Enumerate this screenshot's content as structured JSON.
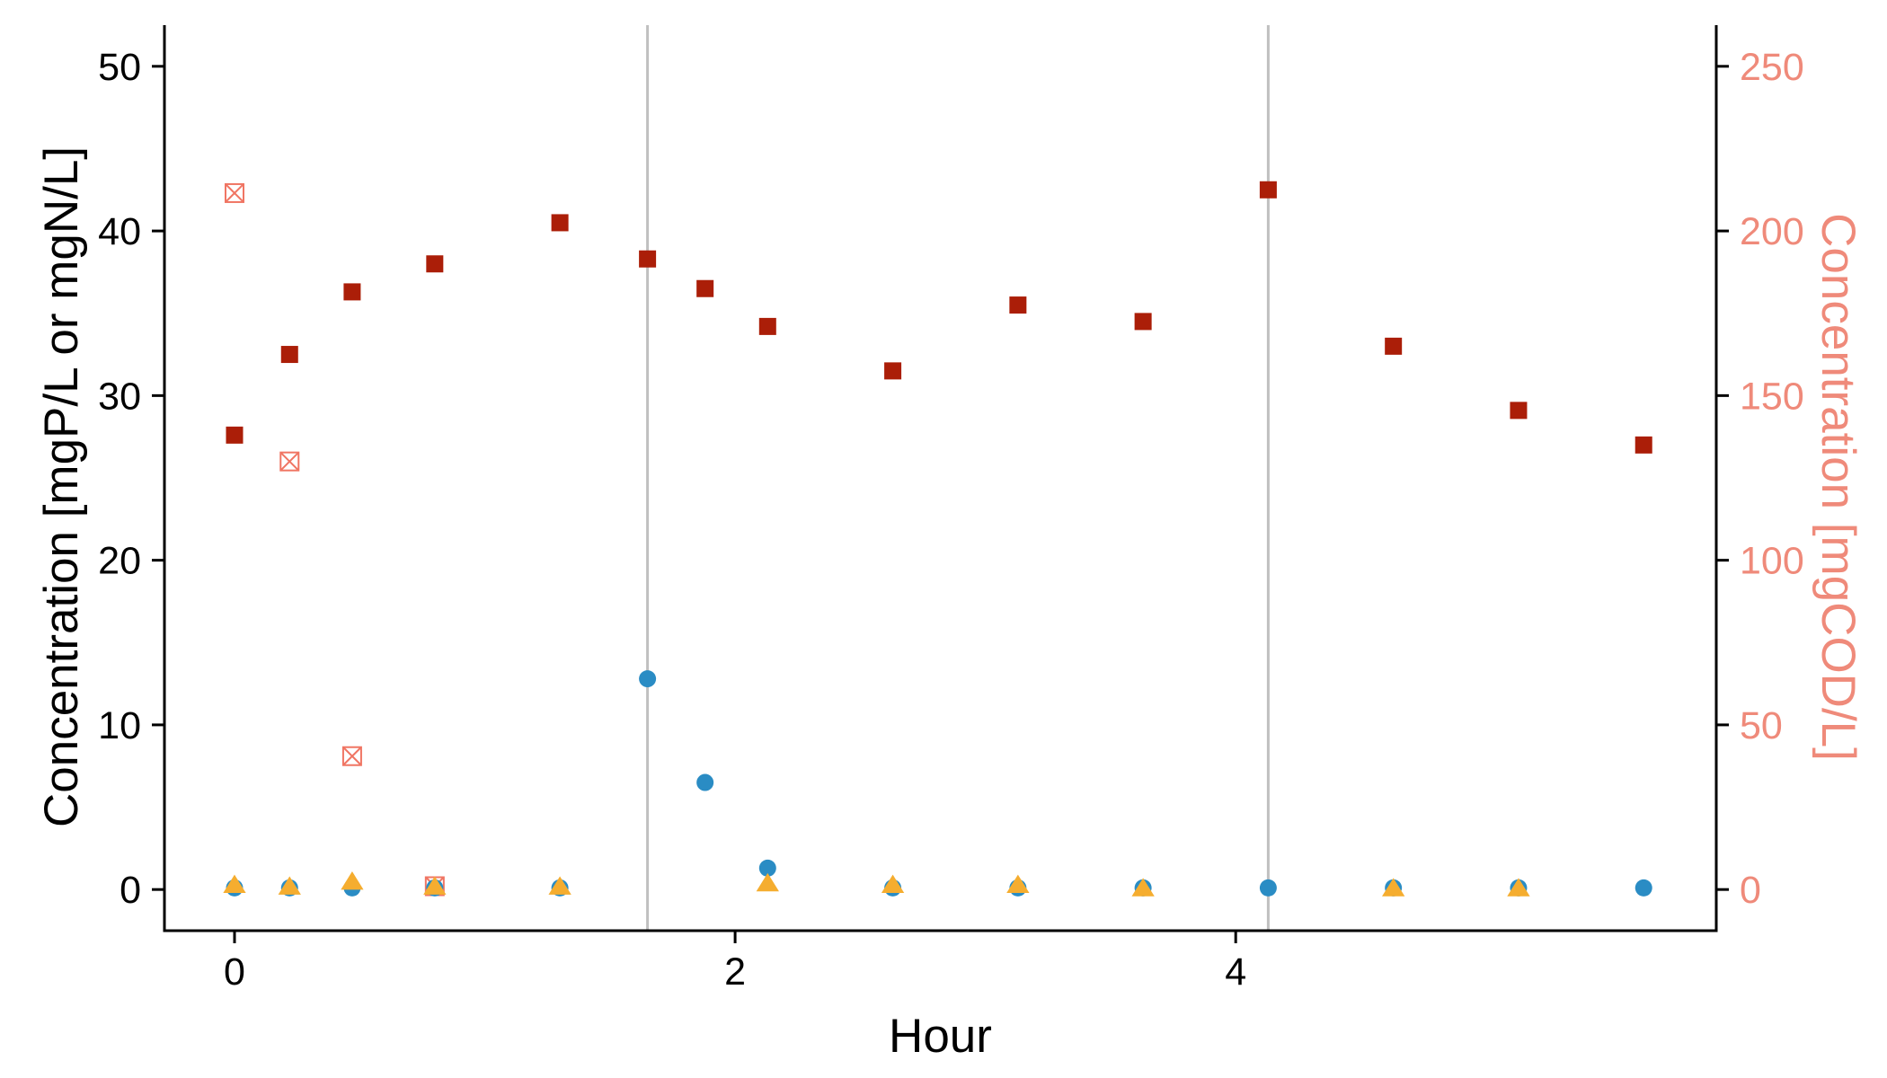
{
  "chart_data": {
    "type": "scatter",
    "xlabel": "Hour",
    "ylabel_left": "Concentration [mgP/L or mgN/L]",
    "ylabel_right": "Concentration [mgCOD/L]",
    "x_ticks": [
      "0",
      "2",
      "4"
    ],
    "y_left_ticks": [
      "0",
      "10",
      "20",
      "30",
      "40",
      "50"
    ],
    "y_right_ticks": [
      "0",
      "50",
      "100",
      "150",
      "200",
      "250"
    ],
    "xlim": [
      -0.28,
      5.92
    ],
    "ylim_left": [
      -2.5,
      52.5
    ],
    "ylim_right": [
      -12.5,
      262.5
    ],
    "vertical_lines_x": [
      1.65,
      4.13
    ],
    "grid": false,
    "legend": "none",
    "colors": {
      "axis": "#000000",
      "right_axis": "#ef8a7a",
      "vline": "#c0c0c0",
      "circle": "#2a8cc4",
      "triangle": "#f5ad2f",
      "square_filled": "#ab1e08",
      "square_open": "#f07563"
    },
    "series": [
      {
        "marker": "circle",
        "axis": "left",
        "x": [
          0,
          0.22,
          0.47,
          0.8,
          1.3,
          1.65,
          1.88,
          2.13,
          2.63,
          3.13,
          3.63,
          4.13,
          4.63,
          5.13,
          5.63
        ],
        "y": [
          0.1,
          0.1,
          0.1,
          0.1,
          0.1,
          12.8,
          6.5,
          1.3,
          0.1,
          0.1,
          0.1,
          0.1,
          0.1,
          0.1,
          0.1
        ]
      },
      {
        "marker": "triangle",
        "axis": "left",
        "x": [
          0,
          0.22,
          0.47,
          0.8,
          1.3,
          2.13,
          2.63,
          3.13,
          3.63,
          4.63,
          5.13
        ],
        "y": [
          0.3,
          0.2,
          0.5,
          0.2,
          0.2,
          0.4,
          0.3,
          0.3,
          0.1,
          0.1,
          0.1
        ]
      },
      {
        "marker": "square",
        "axis": "right",
        "x": [
          0,
          0.22,
          0.47,
          0.8,
          1.3,
          1.65,
          1.88,
          2.13,
          2.63,
          3.13,
          3.63,
          4.13,
          4.63,
          5.13,
          5.63
        ],
        "y": [
          138,
          162.5,
          181.5,
          190,
          202.5,
          191.5,
          182.5,
          171,
          157.5,
          177.5,
          172.5,
          212.5,
          165,
          145.5,
          135
        ]
      },
      {
        "marker": "square-x",
        "axis": "right",
        "x": [
          0,
          0.22,
          0.47,
          0.8
        ],
        "y": [
          211.5,
          130,
          40.5,
          1
        ]
      }
    ]
  }
}
